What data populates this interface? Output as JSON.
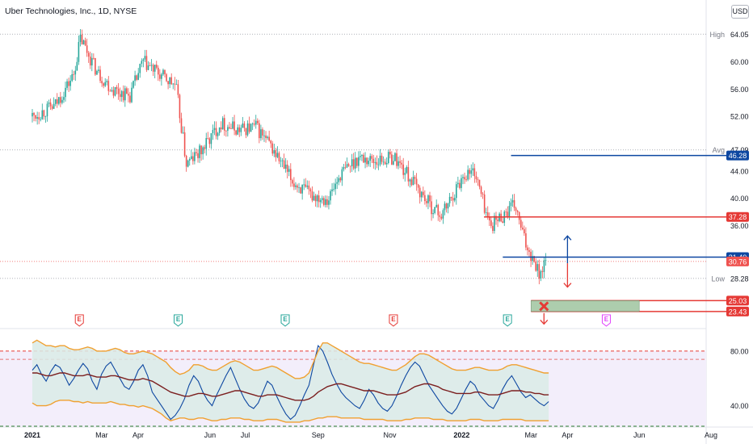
{
  "header": {
    "title": "Uber Technologies, Inc., 1D, NYSE",
    "currency": "USD"
  },
  "chart_data": [
    {
      "type": "candlestick",
      "title": "Uber Technologies, Inc., 1D, NYSE",
      "y_axis_ticks": [
        "64.05",
        "60.00",
        "56.00",
        "52.00",
        "47.09",
        "44.00",
        "40.00",
        "36.00",
        "28.28"
      ],
      "ylim": [
        22,
        65.5
      ],
      "x_axis_ticks": [
        "2021",
        "Mar",
        "Apr",
        "Jun",
        "Jul",
        "Sep",
        "Nov",
        "2022",
        "Mar",
        "Apr",
        "Jun",
        "Aug"
      ],
      "x_tick_dates": [
        "2021-01-01",
        "2021-03-01",
        "2021-04-01",
        "2021-06-01",
        "2021-07-01",
        "2021-09-01",
        "2021-11-01",
        "2022-01-01",
        "2022-03-01",
        "2022-04-01",
        "2022-06-01",
        "2022-08-01"
      ],
      "up_color": "#26a69a",
      "down_color": "#ef5350",
      "price_path": [
        {
          "date": "2021-01-01",
          "close": 52.0
        },
        {
          "date": "2021-01-20",
          "close": 53.5
        },
        {
          "date": "2021-02-05",
          "close": 58.0
        },
        {
          "date": "2021-02-11",
          "close": 63.5
        },
        {
          "date": "2021-02-25",
          "close": 58.5
        },
        {
          "date": "2021-03-10",
          "close": 56.0
        },
        {
          "date": "2021-03-25",
          "close": 55.0
        },
        {
          "date": "2021-04-05",
          "close": 60.0
        },
        {
          "date": "2021-04-20",
          "close": 58.0
        },
        {
          "date": "2021-05-03",
          "close": 56.5
        },
        {
          "date": "2021-05-12",
          "close": 45.0
        },
        {
          "date": "2021-05-25",
          "close": 47.0
        },
        {
          "date": "2021-06-10",
          "close": 51.0
        },
        {
          "date": "2021-06-25",
          "close": 50.0
        },
        {
          "date": "2021-07-10",
          "close": 50.5
        },
        {
          "date": "2021-07-25",
          "close": 47.0
        },
        {
          "date": "2021-08-10",
          "close": 42.5
        },
        {
          "date": "2021-08-25",
          "close": 40.5
        },
        {
          "date": "2021-09-10",
          "close": 40.0
        },
        {
          "date": "2021-09-20",
          "close": 43.5
        },
        {
          "date": "2021-10-05",
          "close": 46.0
        },
        {
          "date": "2021-10-20",
          "close": 45.5
        },
        {
          "date": "2021-11-05",
          "close": 46.0
        },
        {
          "date": "2021-11-20",
          "close": 42.5
        },
        {
          "date": "2021-12-05",
          "close": 39.0
        },
        {
          "date": "2021-12-15",
          "close": 37.5
        },
        {
          "date": "2022-01-03",
          "close": 43.5
        },
        {
          "date": "2022-01-12",
          "close": 44.0
        },
        {
          "date": "2022-01-25",
          "close": 36.0
        },
        {
          "date": "2022-02-05",
          "close": 37.5
        },
        {
          "date": "2022-02-15",
          "close": 39.0
        },
        {
          "date": "2022-02-24",
          "close": 33.5
        },
        {
          "date": "2022-03-05",
          "close": 30.5
        },
        {
          "date": "2022-03-08",
          "close": 29.0
        },
        {
          "date": "2022-03-14",
          "close": 30.76
        }
      ],
      "reference_lines": [
        {
          "label": "High",
          "value": 64.05,
          "style": "dotted-gray"
        },
        {
          "label": "Avg",
          "value": 47.09,
          "style": "dotted-gray"
        },
        {
          "label": "Low",
          "value": 28.28,
          "style": "dotted-gray"
        },
        {
          "label": "",
          "value": 30.76,
          "style": "dotted-red"
        }
      ],
      "price_badges": [
        {
          "value": "46.28",
          "color": "#0d47a1"
        },
        {
          "value": "37.28",
          "color": "#e53935"
        },
        {
          "value": "31.40",
          "color": "#0d47a1"
        },
        {
          "value": "30.76",
          "color": "#ef5350"
        },
        {
          "value": "25.03",
          "color": "#e53935"
        },
        {
          "value": "23.43",
          "color": "#e53935"
        }
      ],
      "drawn_lines": [
        {
          "value": 46.28,
          "color": "#0d47a1",
          "from": "2022-02-12",
          "to": "2022-08-25"
        },
        {
          "value": 37.28,
          "color": "#e53935",
          "from": "2022-01-20",
          "to": "2022-08-25"
        },
        {
          "value": 31.4,
          "color": "#0d47a1",
          "from": "2022-02-05",
          "to": "2022-08-25"
        },
        {
          "value": 25.03,
          "color": "#e53935",
          "from": "2022-03-01",
          "to": "2022-08-25"
        },
        {
          "value": 23.43,
          "color": "#e53935",
          "from": "2022-03-01",
          "to": "2022-08-25"
        }
      ],
      "target_zone": {
        "low": 23.43,
        "high": 25.03,
        "from": "2022-03-01",
        "to": "2022-06-01",
        "color": "#a5c8a5"
      },
      "arrows": [
        {
          "date": "2022-04-01",
          "from": 30.5,
          "to": 34.5,
          "direction": "up",
          "color": "#0d47a1"
        },
        {
          "date": "2022-04-01",
          "from": 30.5,
          "to": 27.0,
          "direction": "down",
          "color": "#e53935"
        },
        {
          "date": "2022-03-12",
          "from": 23.2,
          "to": 21.6,
          "direction": "down",
          "color": "#e53935"
        }
      ],
      "cross_marker": {
        "date": "2022-03-12",
        "value": 24.2,
        "color": "#e53935"
      },
      "earnings_markers": [
        {
          "label": "E",
          "date": "2021-02-10",
          "color": "#e53935"
        },
        {
          "label": "E",
          "date": "2021-05-05",
          "color": "#26a69a"
        },
        {
          "label": "E",
          "date": "2021-08-04",
          "color": "#26a69a"
        },
        {
          "label": "E",
          "date": "2021-11-04",
          "color": "#e53935"
        },
        {
          "label": "E",
          "date": "2022-02-09",
          "color": "#26a69a"
        },
        {
          "label": "E",
          "date": "2022-05-04",
          "color": "#e040fb"
        }
      ]
    },
    {
      "type": "line",
      "title": "RSI",
      "y_axis_ticks": [
        "80.00",
        "40.00"
      ],
      "ylim": [
        25,
        90
      ],
      "upper_band_level": 80,
      "mid_band_level": 74,
      "lower_band_level": 25,
      "band_colors": {
        "upper": "#e53935",
        "mid": "#e57373",
        "lower": "#2e7d32"
      },
      "series": [
        {
          "color": "#0d47a1",
          "values": [
            66,
            70,
            63,
            58,
            65,
            70,
            68,
            62,
            55,
            60,
            66,
            71,
            67,
            58,
            52,
            63,
            69,
            72,
            66,
            60,
            54,
            52,
            58,
            66,
            70,
            62,
            50,
            45,
            40,
            35,
            30,
            33,
            38,
            45,
            55,
            62,
            58,
            50,
            44,
            40,
            48,
            55,
            62,
            68,
            60,
            52,
            45,
            40,
            38,
            42,
            50,
            58,
            55,
            47,
            40,
            34,
            30,
            33,
            40,
            48,
            55,
            70,
            84,
            80,
            72,
            63,
            56,
            50,
            46,
            43,
            40,
            38,
            44,
            52,
            48,
            42,
            38,
            36,
            40,
            47,
            55,
            62,
            68,
            72,
            69,
            62,
            55,
            50,
            45,
            40,
            36,
            34,
            38,
            45,
            52,
            58,
            55,
            48,
            44,
            40,
            38,
            44,
            52,
            58,
            62,
            56,
            50,
            46,
            48,
            45,
            42,
            40,
            43
          ]
        },
        {
          "color": "#7b1f1f",
          "values": [
            64,
            64,
            63,
            62,
            62,
            63,
            64,
            64,
            63,
            62,
            62,
            62,
            63,
            62,
            61,
            61,
            61,
            62,
            62,
            61,
            60,
            59,
            59,
            59,
            60,
            59,
            58,
            56,
            54,
            52,
            50,
            49,
            48,
            47,
            47,
            48,
            49,
            49,
            48,
            47,
            47,
            48,
            49,
            50,
            51,
            51,
            50,
            49,
            48,
            47,
            47,
            48,
            48,
            48,
            47,
            46,
            45,
            44,
            44,
            44,
            45,
            47,
            50,
            52,
            54,
            55,
            56,
            56,
            55,
            54,
            53,
            52,
            51,
            51,
            51,
            50,
            49,
            48,
            48,
            48,
            49,
            50,
            52,
            54,
            55,
            56,
            56,
            55,
            54,
            52,
            51,
            50,
            49,
            49,
            49,
            49,
            50,
            50,
            49,
            48,
            48,
            48,
            49,
            50,
            51,
            51,
            51,
            50,
            50,
            49,
            49,
            48,
            48
          ]
        },
        {
          "color": "#f0a030",
          "values": [
            86,
            88,
            86,
            84,
            84,
            83,
            84,
            84,
            82,
            81,
            81,
            82,
            83,
            82,
            80,
            80,
            80,
            81,
            82,
            81,
            79,
            78,
            78,
            79,
            80,
            79,
            78,
            76,
            74,
            72,
            68,
            65,
            63,
            64,
            66,
            70,
            70,
            69,
            67,
            66,
            66,
            68,
            70,
            72,
            73,
            72,
            70,
            68,
            66,
            66,
            67,
            68,
            69,
            68,
            66,
            64,
            62,
            60,
            60,
            61,
            64,
            72,
            80,
            86,
            86,
            84,
            82,
            80,
            78,
            76,
            74,
            72,
            71,
            71,
            70,
            69,
            68,
            67,
            66,
            66,
            68,
            70,
            73,
            76,
            78,
            78,
            77,
            75,
            73,
            71,
            69,
            67,
            66,
            66,
            66,
            67,
            68,
            68,
            67,
            66,
            66,
            66,
            67,
            69,
            70,
            70,
            69,
            68,
            67,
            66,
            65,
            64,
            64
          ]
        },
        {
          "color": "#f0a030",
          "values": [
            42,
            40,
            40,
            40,
            41,
            43,
            44,
            44,
            44,
            43,
            43,
            42,
            43,
            42,
            42,
            42,
            42,
            43,
            42,
            41,
            41,
            40,
            40,
            39,
            40,
            39,
            38,
            36,
            34,
            31,
            29,
            30,
            31,
            31,
            30,
            30,
            31,
            31,
            30,
            29,
            29,
            30,
            30,
            31,
            31,
            31,
            30,
            30,
            29,
            29,
            29,
            30,
            30,
            30,
            29,
            28,
            28,
            28,
            28,
            29,
            29,
            30,
            31,
            31,
            32,
            32,
            32,
            31,
            31,
            31,
            31,
            31,
            30,
            30,
            30,
            30,
            30,
            29,
            29,
            29,
            29,
            30,
            30,
            31,
            31,
            31,
            31,
            30,
            30,
            30,
            29,
            29,
            29,
            29,
            29,
            30,
            30,
            30,
            29,
            29,
            29,
            29,
            30,
            30,
            30,
            30,
            30,
            29,
            29,
            29,
            29,
            29,
            29
          ]
        }
      ]
    }
  ]
}
